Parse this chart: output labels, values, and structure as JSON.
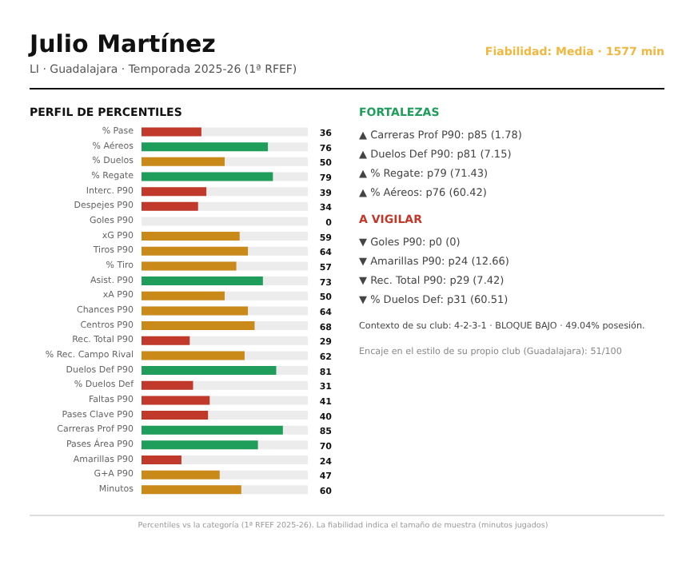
{
  "chart_data": {
    "type": "bar",
    "orientation": "horizontal",
    "title": "Julio Martínez",
    "subtitle": "LI · Guadalajara · Temporada 2025-26 (1ª RFEF)",
    "xlim": [
      0,
      100
    ],
    "data_labels": true,
    "categories": [
      "% Pase",
      "% Aéreos",
      "% Duelos",
      "% Regate",
      "Interc. P90",
      "Despejes P90",
      "Goles P90",
      "xG P90",
      "Tiros P90",
      "% Tiro",
      "Asist. P90",
      "xA P90",
      "Chances P90",
      "Centros P90",
      "Rec. Total P90",
      "% Rec. Campo Rival",
      "Duelos Def P90",
      "% Duelos Def",
      "Faltas P90",
      "Pases Clave P90",
      "Carreras Prof P90",
      "Pases Área P90",
      "Amarillas P90",
      "G+A P90",
      "Minutos"
    ],
    "values": [
      36,
      76,
      50,
      79,
      39,
      34,
      0,
      59,
      64,
      57,
      73,
      50,
      64,
      68,
      29,
      62,
      81,
      31,
      41,
      40,
      85,
      70,
      24,
      47,
      60
    ],
    "colors": [
      "#c0392b",
      "#1e9e5a",
      "#c98a1a",
      "#1e9e5a",
      "#c0392b",
      "#c0392b",
      "#c0392b",
      "#c98a1a",
      "#c98a1a",
      "#c98a1a",
      "#1e9e5a",
      "#c98a1a",
      "#c98a1a",
      "#c98a1a",
      "#c0392b",
      "#c98a1a",
      "#1e9e5a",
      "#c0392b",
      "#c0392b",
      "#c0392b",
      "#1e9e5a",
      "#1e9e5a",
      "#c0392b",
      "#c98a1a",
      "#c98a1a"
    ],
    "annotations": [
      "Fiabilidad: Media · 1577 min",
      "PERFIL DE PERCENTILES",
      "FORTALEZAS",
      "▲ Carreras Prof P90: p85 (1.78)",
      "▲ Duelos Def P90: p81 (7.15)",
      "▲ % Regate: p79 (71.43)",
      "▲ % Aéreos: p76 (60.42)",
      "A VIGILAR",
      "▼ Goles P90: p0 (0)",
      "▼ Amarillas P90: p24 (12.66)",
      "▼ Rec. Total P90: p29 (7.42)",
      "▼ % Duelos Def: p31 (60.51)",
      "Contexto de su club: 4-2-3-1 · BLOQUE BAJO · 49.04% posesión.",
      "Encaje en el estilo de su propio club (Guadalajara): 51/100",
      "Percentiles vs la categoría (1ª RFEF 2025-26). La fiabilidad indica el tamaño de muestra (minutos jugados)"
    ]
  }
}
